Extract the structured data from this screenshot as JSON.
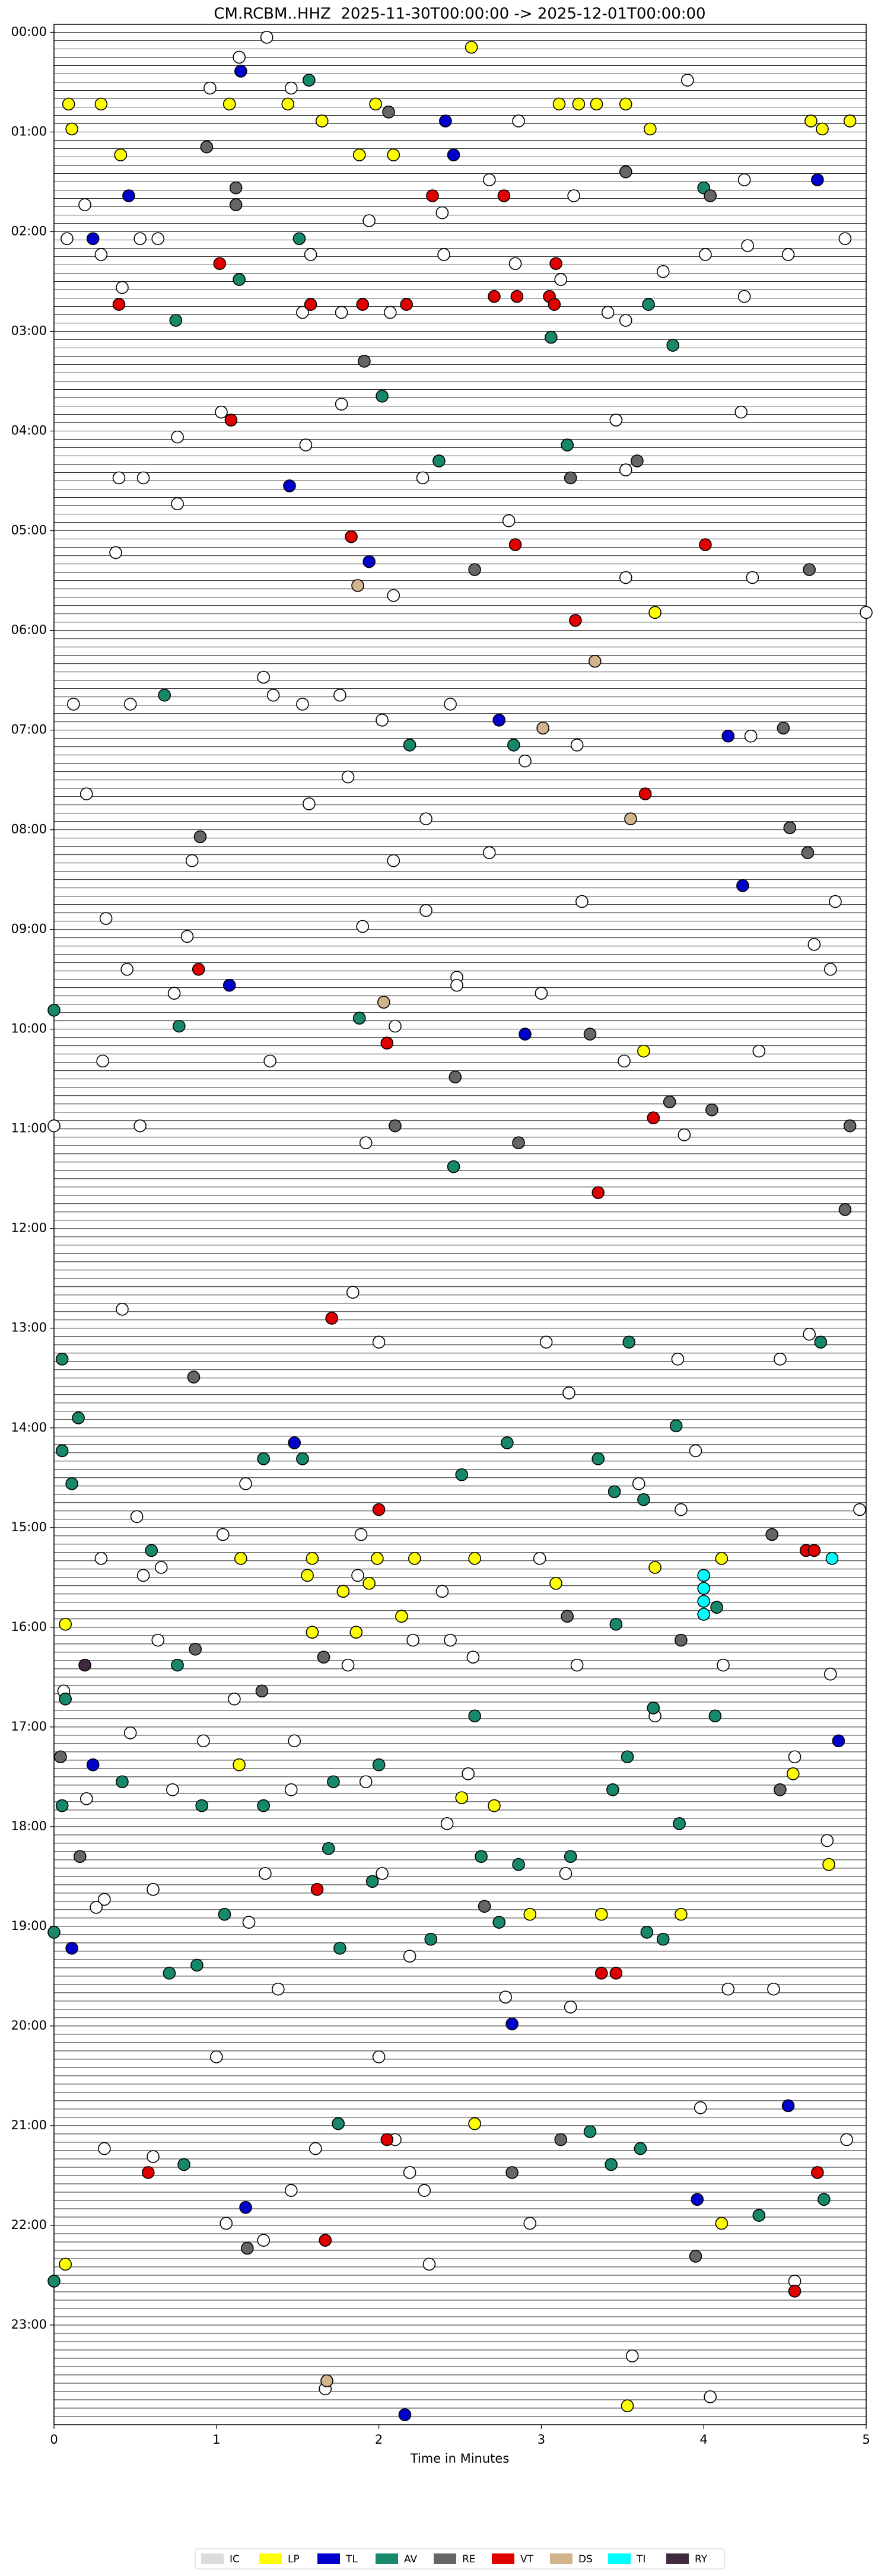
{
  "chart_data": {
    "type": "scatter",
    "title": "CM.RCBM..HHZ  2025-11-30T00:00:00 -> 2025-12-01T00:00:00",
    "x_label": "Time in Minutes",
    "xlim": [
      0,
      5
    ],
    "xticks": [
      0,
      1,
      2,
      3,
      4,
      5
    ],
    "ylim": [
      24,
      -0.08
    ],
    "yticks": [
      {
        "value": 0,
        "label": "00:00"
      },
      {
        "value": 1,
        "label": "01:00"
      },
      {
        "value": 2,
        "label": "02:00"
      },
      {
        "value": 3,
        "label": "03:00"
      },
      {
        "value": 4,
        "label": "04:00"
      },
      {
        "value": 5,
        "label": "05:00"
      },
      {
        "value": 6,
        "label": "06:00"
      },
      {
        "value": 7,
        "label": "07:00"
      },
      {
        "value": 8,
        "label": "08:00"
      },
      {
        "value": 9,
        "label": "09:00"
      },
      {
        "value": 10,
        "label": "10:00"
      },
      {
        "value": 11,
        "label": "11:00"
      },
      {
        "value": 12,
        "label": "12:00"
      },
      {
        "value": 13,
        "label": "13:00"
      },
      {
        "value": 14,
        "label": "14:00"
      },
      {
        "value": 15,
        "label": "15:00"
      },
      {
        "value": 16,
        "label": "16:00"
      },
      {
        "value": 17,
        "label": "17:00"
      },
      {
        "value": 18,
        "label": "18:00"
      },
      {
        "value": 19,
        "label": "19:00"
      },
      {
        "value": 20,
        "label": "20:00"
      },
      {
        "value": 21,
        "label": "21:00"
      },
      {
        "value": 22,
        "label": "22:00"
      },
      {
        "value": 23,
        "label": "23:00"
      }
    ],
    "legend": "bottom",
    "series": [
      {
        "name": "IC",
        "color": "#ffffff",
        "x": [
          1.31,
          1.14,
          0.96,
          1.46,
          3.9,
          2.86,
          3.2,
          0.19,
          0.08,
          0.53,
          0.64,
          1.94,
          2.39,
          2.68,
          4.25,
          4.87,
          4.27,
          0.29,
          1.58,
          2.4,
          2.84,
          4.01,
          4.52,
          3.12,
          3.75,
          0.42,
          1.53,
          1.77,
          2.07,
          3.41,
          3.52,
          4.25,
          1.03,
          1.77,
          4.23,
          0.76,
          1.55,
          3.46,
          0.4,
          0.55,
          2.27,
          3.52,
          0.76,
          2.8,
          0.38,
          3.52,
          4.3,
          2.09,
          5.0,
          1.29,
          1.35,
          0.12,
          0.47,
          1.53,
          1.76,
          2.44,
          2.02,
          3.22,
          2.9,
          4.29,
          1.81,
          0.2,
          1.57,
          2.29,
          2.68,
          0.85,
          2.09,
          3.25,
          4.81,
          2.29,
          0.32,
          1.9,
          0.82,
          4.68,
          0.45,
          4.78,
          2.48,
          2.48,
          0.74,
          3.0,
          2.1,
          0.3,
          1.33,
          4.34,
          3.51,
          0.0,
          0.53,
          1.92,
          3.88,
          0.42,
          1.84,
          2.0,
          3.03,
          3.84,
          4.47,
          4.65,
          3.17,
          3.95,
          1.18,
          3.6,
          0.51,
          3.86,
          4.96,
          1.04,
          1.89,
          0.29,
          2.99,
          0.66,
          0.55,
          1.87,
          2.39,
          0.64,
          2.21,
          2.44,
          1.81,
          2.58,
          3.22,
          4.12,
          4.78,
          0.06,
          1.11,
          3.7,
          0.47,
          0.92,
          1.48,
          2.55,
          0.2,
          0.73,
          1.46,
          1.92,
          4.56,
          2.42,
          4.76,
          2.02,
          1.3,
          0.61,
          0.31,
          0.26,
          3.15,
          1.2,
          2.19,
          1.38,
          2.78,
          3.18,
          4.15,
          4.43,
          1.0,
          2.0,
          3.98,
          4.88,
          0.31,
          1.61,
          2.1,
          0.61,
          2.19,
          2.28,
          1.46,
          1.06,
          2.93,
          1.29,
          2.31,
          4.56,
          3.56,
          1.67,
          4.04
        ],
        "values": [
          0.05,
          0.25,
          0.56,
          0.56,
          0.48,
          0.89,
          1.64,
          1.73,
          2.07,
          2.07,
          2.07,
          1.89,
          1.81,
          1.48,
          1.48,
          2.07,
          2.14,
          2.23,
          2.23,
          2.23,
          2.32,
          2.23,
          2.23,
          2.48,
          2.4,
          2.56,
          2.81,
          2.81,
          2.81,
          2.81,
          2.89,
          2.65,
          3.81,
          3.73,
          3.81,
          4.06,
          4.14,
          3.89,
          4.47,
          4.47,
          4.47,
          4.39,
          4.73,
          4.9,
          5.22,
          5.47,
          5.47,
          5.65,
          5.82,
          6.47,
          6.65,
          6.74,
          6.74,
          6.74,
          6.65,
          6.74,
          6.9,
          7.15,
          7.31,
          7.06,
          7.47,
          7.64,
          7.74,
          7.89,
          8.23,
          8.31,
          8.31,
          8.72,
          8.72,
          8.81,
          8.89,
          8.97,
          9.07,
          9.15,
          9.4,
          9.4,
          9.48,
          9.56,
          9.64,
          9.64,
          9.97,
          10.32,
          10.32,
          10.22,
          10.32,
          10.97,
          10.97,
          11.14,
          11.06,
          12.81,
          12.64,
          13.14,
          13.14,
          13.31,
          13.31,
          13.06,
          13.65,
          14.23,
          14.56,
          14.56,
          14.89,
          14.82,
          14.82,
          15.07,
          15.07,
          15.31,
          15.31,
          15.4,
          15.48,
          15.48,
          15.64,
          16.13,
          16.13,
          16.13,
          16.38,
          16.3,
          16.38,
          16.38,
          16.47,
          16.64,
          16.72,
          16.89,
          17.06,
          17.14,
          17.14,
          17.47,
          17.72,
          17.63,
          17.63,
          17.55,
          17.3,
          17.97,
          18.14,
          18.47,
          18.47,
          18.63,
          18.73,
          18.81,
          18.47,
          18.96,
          19.3,
          19.63,
          19.71,
          19.81,
          19.63,
          19.63,
          20.31,
          20.31,
          20.82,
          21.14,
          21.23,
          21.23,
          21.14,
          21.31,
          21.47,
          21.65,
          21.65,
          21.98,
          21.98,
          22.15,
          22.39,
          22.56,
          23.31,
          23.64,
          23.72
        ]
      },
      {
        "name": "LP",
        "color": "#ffff00",
        "x": [
          2.57,
          0.09,
          0.29,
          1.08,
          1.44,
          1.98,
          3.11,
          3.23,
          3.34,
          3.52,
          1.65,
          4.66,
          4.9,
          0.11,
          3.67,
          4.73,
          0.41,
          1.88,
          2.09,
          3.7,
          3.63,
          1.15,
          1.59,
          1.99,
          2.22,
          2.59,
          4.11,
          3.7,
          1.56,
          1.94,
          1.78,
          3.09,
          2.14,
          0.07,
          1.59,
          1.86,
          1.14,
          4.55,
          2.51,
          2.71,
          4.77,
          2.93,
          3.37,
          3.86,
          2.59,
          4.11,
          0.07,
          3.53
        ],
        "values": [
          0.15,
          0.72,
          0.72,
          0.72,
          0.72,
          0.72,
          0.72,
          0.72,
          0.72,
          0.72,
          0.89,
          0.89,
          0.89,
          0.97,
          0.97,
          0.97,
          1.23,
          1.23,
          1.23,
          5.82,
          10.22,
          15.31,
          15.31,
          15.31,
          15.31,
          15.31,
          15.31,
          15.4,
          15.48,
          15.56,
          15.64,
          15.56,
          15.89,
          15.97,
          16.05,
          16.05,
          17.38,
          17.47,
          17.71,
          17.79,
          18.38,
          18.88,
          18.88,
          18.88,
          20.98,
          21.98,
          22.39,
          23.81
        ]
      },
      {
        "name": "TL",
        "color": "#0000cd",
        "x": [
          1.15,
          2.41,
          2.46,
          4.7,
          0.46,
          0.24,
          1.45,
          1.94,
          2.74,
          4.15,
          4.24,
          1.08,
          2.9,
          1.48,
          4.83,
          0.24,
          0.11,
          2.82,
          4.52,
          3.96,
          1.18,
          2.16
        ],
        "values": [
          0.39,
          0.89,
          1.23,
          1.48,
          1.64,
          2.07,
          4.55,
          5.31,
          6.9,
          7.06,
          8.56,
          9.56,
          10.05,
          14.15,
          17.14,
          17.38,
          19.22,
          19.98,
          20.8,
          21.74,
          21.82,
          23.9
        ]
      },
      {
        "name": "AV",
        "color": "#17896a",
        "x": [
          1.57,
          4.0,
          1.51,
          1.14,
          3.66,
          0.75,
          3.06,
          3.81,
          2.02,
          3.16,
          2.37,
          0.68,
          2.19,
          2.83,
          0.0,
          0.77,
          1.88,
          2.46,
          3.54,
          4.72,
          0.05,
          0.15,
          3.83,
          0.05,
          2.79,
          3.35,
          1.29,
          1.53,
          0.11,
          2.51,
          3.45,
          3.63,
          0.6,
          4.08,
          3.46,
          0.76,
          0.07,
          3.69,
          2.59,
          4.07,
          3.53,
          2.0,
          0.42,
          1.72,
          3.44,
          0.05,
          0.91,
          1.29,
          3.85,
          1.69,
          2.63,
          3.18,
          2.86,
          1.96,
          1.05,
          2.74,
          3.65,
          0.0,
          2.32,
          3.75,
          1.76,
          0.88,
          0.71,
          1.75,
          3.3,
          3.61,
          0.8,
          3.43,
          4.74,
          4.34,
          0.0
        ],
        "values": [
          0.48,
          1.56,
          2.07,
          2.48,
          2.73,
          2.89,
          3.06,
          3.14,
          3.65,
          4.14,
          4.3,
          6.65,
          7.15,
          7.15,
          9.81,
          9.97,
          9.89,
          11.38,
          13.14,
          13.14,
          13.31,
          13.9,
          13.98,
          14.23,
          14.15,
          14.31,
          14.31,
          14.31,
          14.56,
          14.47,
          14.64,
          14.72,
          15.23,
          15.8,
          15.97,
          16.38,
          16.72,
          16.81,
          16.89,
          16.89,
          17.3,
          17.38,
          17.55,
          17.55,
          17.63,
          17.79,
          17.79,
          17.79,
          17.97,
          18.22,
          18.3,
          18.3,
          18.38,
          18.55,
          18.88,
          18.96,
          19.06,
          19.06,
          19.13,
          19.13,
          19.22,
          19.39,
          19.47,
          20.98,
          21.06,
          21.23,
          21.39,
          21.39,
          21.74,
          21.9,
          22.56
        ]
      },
      {
        "name": "RE",
        "color": "#666666",
        "x": [
          2.06,
          0.94,
          3.52,
          4.04,
          1.12,
          1.12,
          1.91,
          3.59,
          3.18,
          2.59,
          4.65,
          4.49,
          0.9,
          4.53,
          4.64,
          3.3,
          2.47,
          4.05,
          3.79,
          4.9,
          2.1,
          2.86,
          4.87,
          0.86,
          4.42,
          3.16,
          3.86,
          0.87,
          1.66,
          1.28,
          0.04,
          4.47,
          0.16,
          2.65,
          3.12,
          2.82,
          1.19,
          3.95
        ],
        "values": [
          0.8,
          1.15,
          1.4,
          1.64,
          1.56,
          1.73,
          3.3,
          4.3,
          4.47,
          5.39,
          5.39,
          6.98,
          8.07,
          7.98,
          8.23,
          10.05,
          10.48,
          10.81,
          10.73,
          10.97,
          10.97,
          11.14,
          11.81,
          13.49,
          15.07,
          15.89,
          16.13,
          16.22,
          16.3,
          16.64,
          17.3,
          17.63,
          18.3,
          18.8,
          21.14,
          21.47,
          22.23,
          22.31
        ]
      },
      {
        "name": "VT",
        "color": "#e00000",
        "x": [
          2.33,
          2.77,
          1.02,
          0.4,
          1.58,
          1.9,
          2.17,
          2.71,
          2.85,
          3.05,
          3.08,
          3.09,
          1.09,
          1.83,
          2.84,
          4.01,
          3.21,
          3.64,
          0.89,
          2.05,
          3.69,
          3.35,
          1.71,
          2.0,
          4.63,
          4.68,
          1.62,
          3.37,
          3.46,
          2.05,
          0.58,
          4.7,
          1.67,
          4.56
        ],
        "values": [
          1.64,
          1.64,
          2.32,
          2.73,
          2.73,
          2.73,
          2.73,
          2.65,
          2.65,
          2.65,
          2.73,
          2.32,
          3.89,
          5.06,
          5.14,
          5.14,
          5.9,
          7.64,
          9.4,
          10.14,
          10.89,
          11.64,
          12.9,
          14.82,
          15.23,
          15.23,
          18.63,
          19.47,
          19.47,
          21.14,
          21.47,
          21.47,
          22.15,
          22.66
        ]
      },
      {
        "name": "DS",
        "color": "#d2b48c",
        "x": [
          1.87,
          3.33,
          3.01,
          3.55,
          2.03,
          1.68
        ],
        "values": [
          5.55,
          6.31,
          6.98,
          7.89,
          9.73,
          23.56
        ]
      },
      {
        "name": "TI",
        "color": "#00ffff",
        "x": [
          4.79,
          4.0,
          4.0,
          4.0,
          4.0
        ],
        "values": [
          15.31,
          15.48,
          15.61,
          15.74,
          15.87
        ]
      },
      {
        "name": "RY",
        "color": "#3f2a40",
        "x": [
          0.19
        ],
        "values": [
          16.38
        ]
      }
    ]
  }
}
